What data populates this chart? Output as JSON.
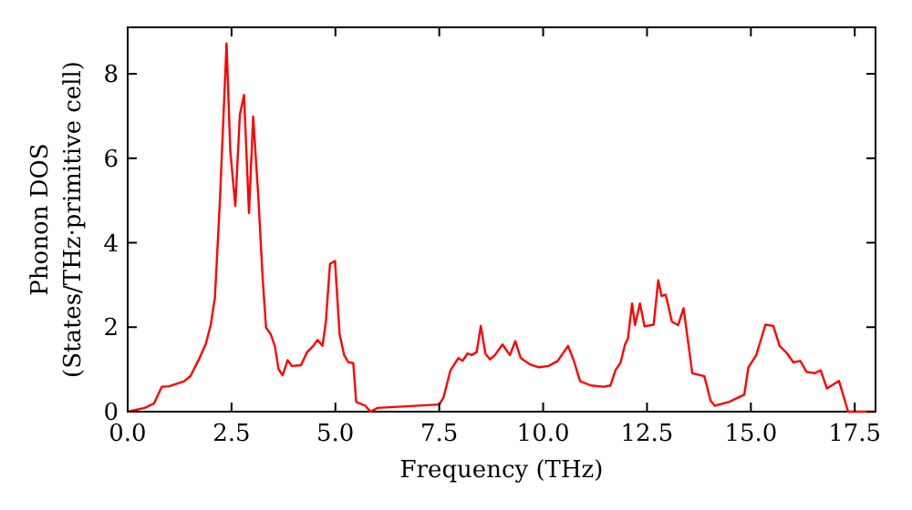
{
  "chart_data": {
    "type": "line",
    "xlabel": "Frequency (THz)",
    "ylabel": "Phonon DOS\n(States/THz·primitive cell)",
    "xlim": [
      0,
      18
    ],
    "ylim": [
      0,
      9.1
    ],
    "xticks": [
      {
        "value": 0,
        "label": "0.0"
      },
      {
        "value": 2.5,
        "label": "2.5"
      },
      {
        "value": 5,
        "label": "5.0"
      },
      {
        "value": 7.5,
        "label": "7.5"
      },
      {
        "value": 10,
        "label": "10.0"
      },
      {
        "value": 12.5,
        "label": "12.5"
      },
      {
        "value": 15,
        "label": "15.0"
      },
      {
        "value": 17.5,
        "label": "17.5"
      }
    ],
    "yticks": [
      0,
      2,
      4,
      6,
      8
    ],
    "grid": false,
    "marker": "none",
    "line_style": "solid",
    "series": [
      {
        "color": "#ff0000",
        "x": [
          0,
          0.41,
          0.63,
          0.82,
          1.0,
          1.36,
          1.51,
          1.73,
          1.88,
          2.0,
          2.1,
          2.22,
          2.38,
          2.47,
          2.59,
          2.7,
          2.8,
          2.92,
          3.02,
          3.14,
          3.25,
          3.33,
          3.44,
          3.54,
          3.63,
          3.73,
          3.85,
          3.95,
          4.17,
          4.32,
          4.47,
          4.57,
          4.69,
          4.77,
          4.87,
          4.99,
          5.1,
          5.21,
          5.31,
          5.43,
          5.5,
          5.72,
          5.84,
          6.02,
          7.5,
          7.6,
          7.77,
          7.96,
          8.06,
          8.18,
          8.28,
          8.4,
          8.5,
          8.61,
          8.72,
          8.84,
          9.02,
          9.2,
          9.33,
          9.46,
          9.68,
          9.9,
          10.13,
          10.35,
          10.6,
          10.74,
          10.89,
          11.15,
          11.45,
          11.62,
          11.74,
          11.86,
          11.97,
          12.04,
          12.14,
          12.21,
          12.33,
          12.44,
          12.66,
          12.77,
          12.85,
          12.95,
          13.1,
          13.25,
          13.38,
          13.59,
          13.88,
          14.03,
          14.13,
          14.47,
          14.84,
          14.94,
          15.13,
          15.35,
          15.54,
          15.69,
          15.87,
          16.02,
          16.19,
          16.34,
          16.53,
          16.68,
          16.83,
          17.12,
          17.34,
          18
        ],
        "values": [
          0,
          0.09,
          0.19,
          0.59,
          0.6,
          0.72,
          0.84,
          1.27,
          1.6,
          2.06,
          2.7,
          5.0,
          8.72,
          6.17,
          4.87,
          7.03,
          7.5,
          4.7,
          6.99,
          5.16,
          3.14,
          1.99,
          1.84,
          1.56,
          1.01,
          0.86,
          1.22,
          1.08,
          1.1,
          1.41,
          1.56,
          1.7,
          1.56,
          2.13,
          3.5,
          3.57,
          1.84,
          1.34,
          1.17,
          1.15,
          0.23,
          0.14,
          0,
          0.09,
          0.17,
          0.33,
          0.98,
          1.27,
          1.2,
          1.38,
          1.34,
          1.41,
          2.03,
          1.37,
          1.24,
          1.34,
          1.59,
          1.34,
          1.67,
          1.27,
          1.12,
          1.05,
          1.08,
          1.2,
          1.56,
          1.2,
          0.72,
          0.62,
          0.59,
          0.62,
          0.98,
          1.15,
          1.59,
          1.73,
          2.56,
          2.05,
          2.56,
          2.02,
          2.06,
          3.11,
          2.74,
          2.77,
          2.13,
          2.05,
          2.45,
          0.91,
          0.84,
          0.26,
          0.14,
          0.23,
          0.4,
          1.05,
          1.34,
          2.06,
          2.03,
          1.56,
          1.38,
          1.17,
          1.2,
          0.94,
          0.91,
          0.98,
          0.55,
          0.73,
          0,
          0
        ]
      }
    ]
  }
}
